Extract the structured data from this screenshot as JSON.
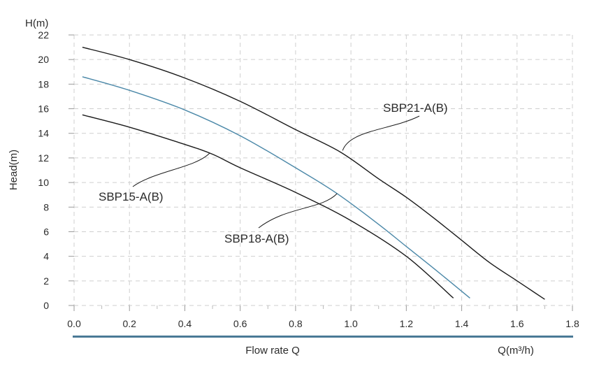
{
  "chart_data": {
    "type": "line",
    "y_unit_label": "H(m)",
    "ylabel": "Head(m)",
    "xlabel": "Flow rate Q",
    "x_unit_label": "Q(m³/h)",
    "xlim": [
      0,
      1.8
    ],
    "ylim": [
      0,
      22
    ],
    "x_ticks": [
      "0.0",
      "0.2",
      "0.4",
      "0.6",
      "0.8",
      "1.0",
      "1.2",
      "1.4",
      "1.6",
      "1.8"
    ],
    "y_ticks": [
      "0",
      "2",
      "4",
      "6",
      "8",
      "10",
      "12",
      "14",
      "16",
      "18",
      "20",
      "22"
    ],
    "grid": "dashed",
    "colors": {
      "axis_bar": "#4a7a96",
      "grid": "#cfcfcf",
      "SBP21-A(B)": "#1a1a1a",
      "SBP18-A(B)": "#4b88a8",
      "SBP15-A(B)": "#1a1a1a"
    },
    "series": [
      {
        "name": "SBP21-A(B)",
        "x": [
          0.03,
          0.2,
          0.4,
          0.6,
          0.8,
          0.96,
          1.1,
          1.2,
          1.3,
          1.4,
          1.5,
          1.6,
          1.7
        ],
        "y": [
          21.0,
          20.0,
          18.5,
          16.6,
          14.3,
          12.5,
          10.3,
          8.8,
          7.1,
          5.3,
          3.5,
          2.0,
          0.5
        ],
        "label_text": "SBP21-A(B)"
      },
      {
        "name": "SBP18-A(B)",
        "x": [
          0.03,
          0.2,
          0.4,
          0.6,
          0.8,
          0.95,
          1.1,
          1.2,
          1.3,
          1.43
        ],
        "y": [
          18.6,
          17.5,
          15.9,
          13.8,
          11.2,
          9.1,
          6.6,
          4.8,
          3.0,
          0.6
        ],
        "label_text": "SBP18-A(B)"
      },
      {
        "name": "SBP15-A(B)",
        "x": [
          0.03,
          0.2,
          0.4,
          0.5,
          0.6,
          0.8,
          1.0,
          1.2,
          1.37
        ],
        "y": [
          15.5,
          14.5,
          13.1,
          12.3,
          11.2,
          9.2,
          6.9,
          4.0,
          0.6
        ],
        "label_text": "SBP15-A(B)"
      }
    ],
    "annotations": [
      {
        "text": "SBP21-A(B)",
        "series": "SBP21-A(B)",
        "anchor_x": 0.97,
        "anchor_y": 12.6
      },
      {
        "text": "SBP18-A(B)",
        "series": "SBP18-A(B)",
        "anchor_x": 0.95,
        "anchor_y": 9.1
      },
      {
        "text": "SBP15-A(B)",
        "series": "SBP15-A(B)",
        "anchor_x": 0.49,
        "anchor_y": 12.4
      }
    ]
  }
}
